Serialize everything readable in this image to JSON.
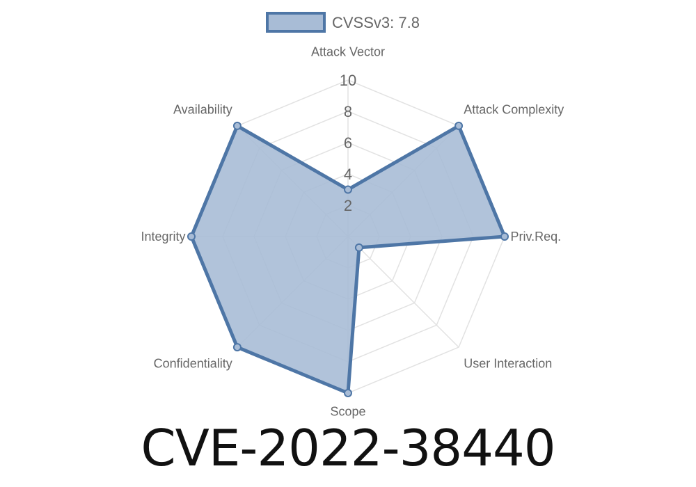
{
  "chart_data": {
    "type": "radar",
    "axes": [
      "Attack Vector",
      "Attack Complexity",
      "Priv.Req.",
      "User Interaction",
      "Scope",
      "Confidentiality",
      "Integrity",
      "Availability"
    ],
    "series": [
      {
        "name": "CVSSv3: 7.8",
        "values": [
          3.0,
          10,
          10,
          1.0,
          10,
          10,
          10,
          10
        ]
      }
    ],
    "rlim": [
      0,
      10
    ],
    "ticks": [
      "2",
      "4",
      "6",
      "8",
      "10"
    ],
    "tick_values": [
      2,
      4,
      6,
      8,
      10
    ],
    "grid": true,
    "legend": "top",
    "colors": {
      "line": "#4e76a6",
      "fill": "#a8bcd6",
      "grid": "#e2e2e2"
    }
  },
  "title": "CVE-2022-38440"
}
